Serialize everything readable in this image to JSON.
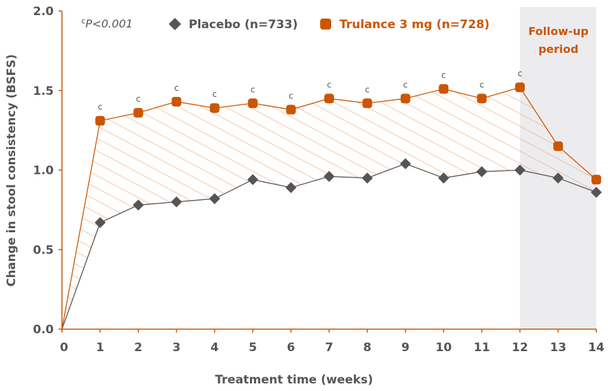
{
  "colors": {
    "trulance": "#cc5500",
    "placebo": "#555555",
    "axis": "#cc5500",
    "shade": "#ececee",
    "hatch": "#e8a27d"
  },
  "significance_note": {
    "prefix": "c",
    "text": "P<0.001"
  },
  "followup_label": [
    "Follow-up",
    "period"
  ],
  "chart_data": {
    "type": "line",
    "xlabel": "Treatment time (weeks)",
    "ylabel": "Change in stool consistency (BSFS)",
    "xlim": [
      0,
      14
    ],
    "ylim": [
      0,
      2.0
    ],
    "x": [
      0,
      1,
      2,
      3,
      4,
      5,
      6,
      7,
      8,
      9,
      10,
      11,
      12,
      13,
      14
    ],
    "x_ticks": [
      "0",
      "1",
      "2",
      "3",
      "4",
      "5",
      "6",
      "7",
      "8",
      "9",
      "10",
      "11",
      "12",
      "13",
      "14"
    ],
    "y_ticks": [
      "0.0",
      "0.5",
      "1.0",
      "1.5",
      "2.0"
    ],
    "y_tick_values": [
      0,
      0.5,
      1.0,
      1.5,
      2.0
    ],
    "grid": false,
    "legend_position": "top",
    "followup_period": [
      12,
      14
    ],
    "series": [
      {
        "name": "Placebo (n=733)",
        "marker": "diamond",
        "color": "#555555",
        "values": [
          0,
          0.67,
          0.78,
          0.8,
          0.82,
          0.94,
          0.89,
          0.96,
          0.95,
          1.04,
          0.95,
          0.99,
          1.0,
          0.95,
          0.86
        ]
      },
      {
        "name": "Trulance 3 mg (n=728)",
        "marker": "square",
        "color": "#cc5500",
        "values": [
          0,
          1.31,
          1.36,
          1.43,
          1.39,
          1.42,
          1.38,
          1.45,
          1.42,
          1.45,
          1.51,
          1.45,
          1.52,
          1.15,
          0.94
        ]
      }
    ],
    "annotations": {
      "label": "c",
      "weeks": [
        1,
        2,
        3,
        4,
        5,
        6,
        7,
        8,
        9,
        10,
        11,
        12
      ]
    }
  }
}
